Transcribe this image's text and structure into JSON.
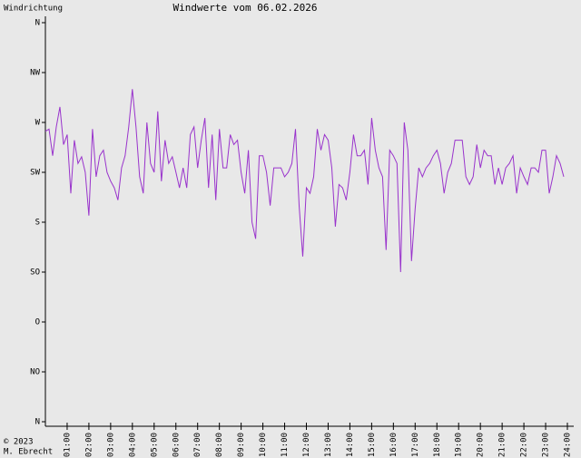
{
  "chart_data": {
    "type": "line",
    "title": "Windwerte vom 06.02.2026",
    "y_label": "Windrichtung",
    "credit": [
      "© 2023",
      "M. Ebrecht"
    ],
    "color": "#9933cc",
    "xlim": [
      0,
      1440
    ],
    "xticks": [
      {
        "value": 60,
        "label": "01:00"
      },
      {
        "value": 120,
        "label": "02:00"
      },
      {
        "value": 180,
        "label": "03:00"
      },
      {
        "value": 240,
        "label": "04:00"
      },
      {
        "value": 300,
        "label": "05:00"
      },
      {
        "value": 360,
        "label": "06:00"
      },
      {
        "value": 420,
        "label": "07:00"
      },
      {
        "value": 480,
        "label": "08:00"
      },
      {
        "value": 540,
        "label": "09:00"
      },
      {
        "value": 600,
        "label": "10:00"
      },
      {
        "value": 660,
        "label": "11:00"
      },
      {
        "value": 720,
        "label": "12:00"
      },
      {
        "value": 780,
        "label": "13:00"
      },
      {
        "value": 840,
        "label": "14:00"
      },
      {
        "value": 900,
        "label": "15:00"
      },
      {
        "value": 960,
        "label": "16:00"
      },
      {
        "value": 1020,
        "label": "17:00"
      },
      {
        "value": 1080,
        "label": "18:00"
      },
      {
        "value": 1140,
        "label": "19:00"
      },
      {
        "value": 1200,
        "label": "20:00"
      },
      {
        "value": 1260,
        "label": "21:00"
      },
      {
        "value": 1320,
        "label": "22:00"
      },
      {
        "value": 1380,
        "label": "23:00"
      },
      {
        "value": 1440,
        "label": "24:00"
      }
    ],
    "ylim": [
      0,
      360
    ],
    "yticks": [
      {
        "value": 360,
        "label": "N"
      },
      {
        "value": 315,
        "label": "NW"
      },
      {
        "value": 270,
        "label": "W"
      },
      {
        "value": 225,
        "label": "SW"
      },
      {
        "value": 180,
        "label": "S"
      },
      {
        "value": 135,
        "label": "SO"
      },
      {
        "value": 90,
        "label": "O"
      },
      {
        "value": 45,
        "label": "NO"
      },
      {
        "value": 0,
        "label": "N"
      }
    ],
    "x": [
      0,
      10,
      20,
      30,
      40,
      50,
      60,
      70,
      80,
      90,
      100,
      110,
      120,
      130,
      140,
      150,
      160,
      170,
      180,
      190,
      200,
      210,
      220,
      230,
      240,
      250,
      260,
      270,
      280,
      290,
      300,
      310,
      320,
      330,
      340,
      350,
      360,
      370,
      380,
      390,
      400,
      410,
      420,
      430,
      440,
      450,
      460,
      470,
      480,
      490,
      500,
      510,
      520,
      530,
      540,
      550,
      560,
      570,
      580,
      590,
      600,
      610,
      620,
      630,
      640,
      650,
      660,
      670,
      680,
      690,
      700,
      710,
      720,
      730,
      740,
      750,
      760,
      770,
      780,
      790,
      800,
      810,
      820,
      830,
      840,
      850,
      860,
      870,
      880,
      890,
      900,
      910,
      920,
      930,
      940,
      950,
      960,
      970,
      980,
      990,
      1000,
      1010,
      1020,
      1030,
      1040,
      1050,
      1060,
      1070,
      1080,
      1090,
      1100,
      1110,
      1120,
      1130,
      1140,
      1150,
      1160,
      1170,
      1180,
      1190,
      1200,
      1210,
      1220,
      1230,
      1240,
      1250,
      1260,
      1270,
      1280,
      1290,
      1300,
      1310,
      1320,
      1330,
      1340,
      1350,
      1360,
      1370,
      1380,
      1390,
      1400,
      1410,
      1420,
      1430
    ],
    "values": [
      262,
      264,
      240,
      266,
      284,
      250,
      259,
      206,
      254,
      233,
      239,
      225,
      186,
      264,
      221,
      240,
      245,
      225,
      217,
      211,
      200,
      229,
      240,
      266,
      300,
      266,
      221,
      206,
      270,
      233,
      225,
      280,
      217,
      254,
      233,
      239,
      225,
      211,
      229,
      211,
      259,
      266,
      229,
      254,
      274,
      211,
      259,
      200,
      264,
      229,
      229,
      259,
      250,
      254,
      225,
      206,
      245,
      180,
      165,
      240,
      240,
      225,
      195,
      229,
      229,
      229,
      221,
      225,
      233,
      264,
      195,
      149,
      211,
      206,
      221,
      264,
      245,
      259,
      254,
      229,
      176,
      214,
      211,
      200,
      225,
      259,
      240,
      240,
      245,
      214,
      274,
      245,
      229,
      221,
      155,
      245,
      240,
      233,
      135,
      270,
      245,
      145,
      192,
      229,
      221,
      229,
      233,
      240,
      245,
      233,
      206,
      225,
      233,
      254,
      254,
      254,
      221,
      214,
      221,
      250,
      229,
      245,
      240,
      240,
      214,
      229,
      214,
      229,
      233,
      240,
      206,
      229,
      221,
      214,
      229,
      229,
      225,
      245,
      245,
      206,
      221,
      240,
      233,
      221
    ]
  }
}
